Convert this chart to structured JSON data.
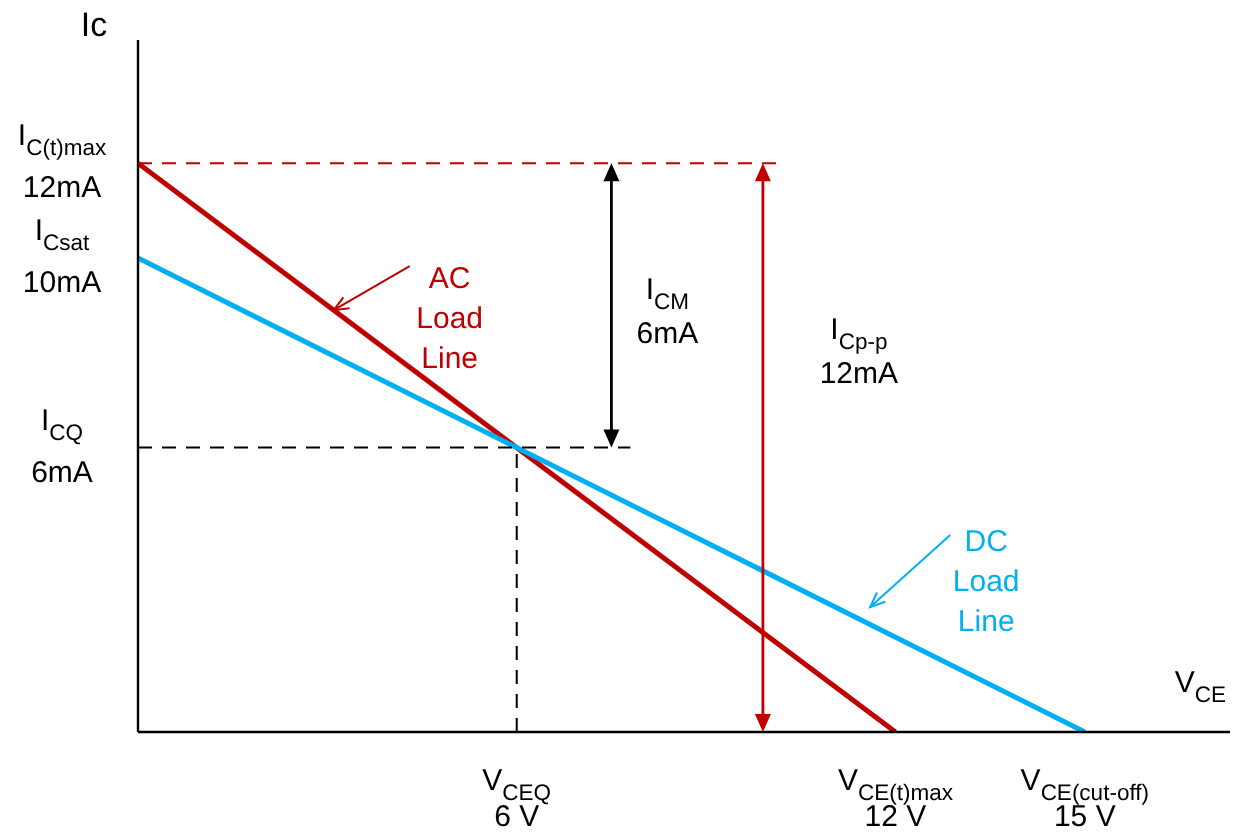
{
  "chart_data": {
    "type": "line",
    "xlabel": "V$_{CE}$",
    "ylabel": "Ic",
    "xlim": [
      0,
      17.3
    ],
    "ylim": [
      0,
      14.6
    ],
    "xticks": [
      {
        "value": 6,
        "label": "V$_{CEQ}$\n6 V"
      },
      {
        "value": 12,
        "label": "V$_{CE(t)max}$\n12 V"
      },
      {
        "value": 15,
        "label": "V$_{CE(cut-off)}$\n15 V"
      }
    ],
    "yticks": [
      {
        "value": 6,
        "label": "I$_{CQ}$\n6mA"
      },
      {
        "value": 10,
        "label": "I$_{Csat}$\n10mA"
      },
      {
        "value": 12,
        "label": "I$_{C(t)max}$\n12mA"
      }
    ],
    "series": [
      {
        "color": "#c00000",
        "x": [
          0,
          12
        ],
        "values": [
          12,
          0
        ]
      },
      {
        "color": "#00b0f0",
        "x": [
          0,
          15
        ],
        "values": [
          10,
          0
        ]
      }
    ],
    "ref_lines": [
      {
        "axis": "y",
        "value": 12,
        "color": "#c00000",
        "line_style": "dashed"
      },
      {
        "axis": "y",
        "value": 6,
        "color": "#000000",
        "line_style": "dashed"
      },
      {
        "axis": "x",
        "value": 6,
        "color": "#000000",
        "line_style": "dashed"
      }
    ],
    "annotations": [
      {
        "text": "AC\nLoad\nLine",
        "x": 3.1,
        "y": 8.9
      },
      {
        "text": "DC\nLoad\nLine",
        "x": 11.6,
        "y": 2.3
      },
      "I$_{CM}$\n6mA",
      "I$_{Cp-p}$\n12mA"
    ],
    "marker": "none",
    "line_style": "solid",
    "grid": false,
    "legend": false
  }
}
